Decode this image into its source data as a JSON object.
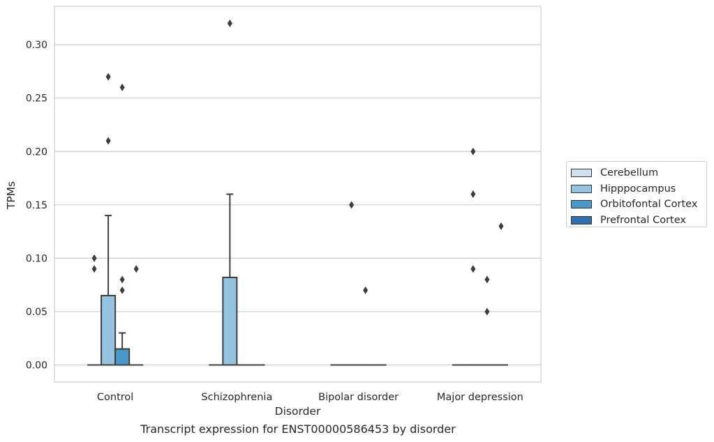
{
  "chart_data": {
    "type": "box",
    "title": "",
    "caption": "Transcript expression for ENST00000586453 by disorder",
    "xlabel": "Disorder",
    "ylabel": "TPMs",
    "ylim": [
      -0.016,
      0.336
    ],
    "yticks": [
      "0.00",
      "0.05",
      "0.10",
      "0.15",
      "0.20",
      "0.25",
      "0.30"
    ],
    "ytick_values": [
      0,
      0.05,
      0.1,
      0.15,
      0.2,
      0.25,
      0.3
    ],
    "grid": true,
    "legend_position": "right",
    "categories": [
      "Control",
      "Schizophrenia",
      "Bipolar disorder",
      "Major depression"
    ],
    "series": [
      {
        "name": "Cerebellum",
        "color": "#d0e1f2",
        "boxes": [
          {
            "q1": 0,
            "median": 0,
            "q3": 0,
            "whisker_low": 0,
            "whisker_high": 0,
            "outliers": [
              0.1,
              0.09
            ]
          },
          {
            "q1": 0,
            "median": 0,
            "q3": 0,
            "whisker_low": 0,
            "whisker_high": 0,
            "outliers": []
          },
          {
            "q1": 0,
            "median": 0,
            "q3": 0,
            "whisker_low": 0,
            "whisker_high": 0,
            "outliers": []
          },
          {
            "q1": 0,
            "median": 0,
            "q3": 0,
            "whisker_low": 0,
            "whisker_high": 0,
            "outliers": []
          }
        ]
      },
      {
        "name": "Hipppocampus",
        "color": "#94c4df",
        "boxes": [
          {
            "q1": 0,
            "median": 0,
            "q3": 0.065,
            "whisker_low": 0,
            "whisker_high": 0.14,
            "outliers": [
              0.27,
              0.21
            ]
          },
          {
            "q1": 0,
            "median": 0,
            "q3": 0.082,
            "whisker_low": 0,
            "whisker_high": 0.16,
            "outliers": [
              0.32
            ]
          },
          {
            "q1": 0,
            "median": 0,
            "q3": 0,
            "whisker_low": 0,
            "whisker_high": 0,
            "outliers": [
              0.15
            ]
          },
          {
            "q1": 0,
            "median": 0,
            "q3": 0,
            "whisker_low": 0,
            "whisker_high": 0,
            "outliers": [
              0.2,
              0.16,
              0.09
            ]
          }
        ]
      },
      {
        "name": "Orbitofontal Cortex",
        "color": "#4a98c9",
        "boxes": [
          {
            "q1": 0,
            "median": 0,
            "q3": 0.015,
            "whisker_low": 0,
            "whisker_high": 0.03,
            "outliers": [
              0.26,
              0.08,
              0.07
            ]
          },
          {
            "q1": 0,
            "median": 0,
            "q3": 0,
            "whisker_low": 0,
            "whisker_high": 0,
            "outliers": []
          },
          {
            "q1": 0,
            "median": 0,
            "q3": 0,
            "whisker_low": 0,
            "whisker_high": 0,
            "outliers": [
              0.07
            ]
          },
          {
            "q1": 0,
            "median": 0,
            "q3": 0,
            "whisker_low": 0,
            "whisker_high": 0,
            "outliers": [
              0.08,
              0.05
            ]
          }
        ]
      },
      {
        "name": "Prefrontal Cortex",
        "color": "#2e6fad",
        "boxes": [
          {
            "q1": 0,
            "median": 0,
            "q3": 0,
            "whisker_low": 0,
            "whisker_high": 0,
            "outliers": [
              0.09
            ]
          },
          {
            "q1": 0,
            "median": 0,
            "q3": 0,
            "whisker_low": 0,
            "whisker_high": 0,
            "outliers": []
          },
          {
            "q1": 0,
            "median": 0,
            "q3": 0,
            "whisker_low": 0,
            "whisker_high": 0,
            "outliers": []
          },
          {
            "q1": 0,
            "median": 0,
            "q3": 0,
            "whisker_low": 0,
            "whisker_high": 0,
            "outliers": [
              0.13
            ]
          }
        ]
      }
    ]
  }
}
